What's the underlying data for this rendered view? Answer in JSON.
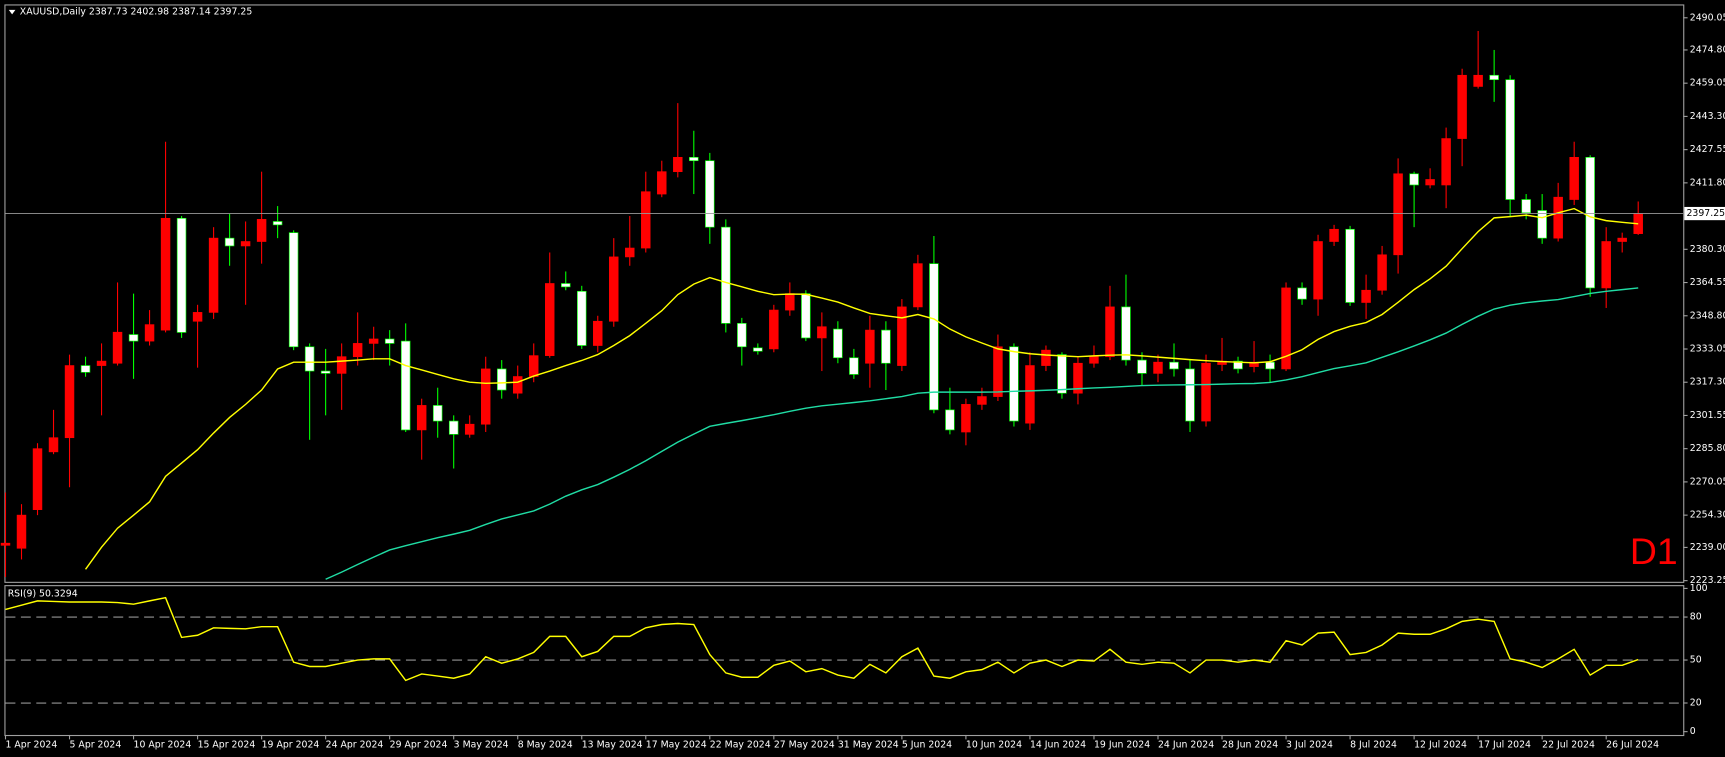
{
  "chart_data": [
    {
      "type": "candlestick",
      "title": "XAUUSD,Daily  2387.73 2402.98 2387.14 2397.25",
      "watermark": "D1",
      "categories": [
        "1 Apr 2024",
        null,
        null,
        null,
        "5 Apr 2024",
        null,
        null,
        null,
        "10 Apr 2024",
        null,
        null,
        null,
        "15 Apr 2024",
        null,
        null,
        null,
        "19 Apr 2024",
        null,
        null,
        null,
        "24 Apr 2024",
        null,
        null,
        null,
        "29 Apr 2024",
        null,
        null,
        null,
        "3 May 2024",
        null,
        null,
        null,
        "8 May 2024",
        null,
        null,
        null,
        "13 May 2024",
        null,
        null,
        null,
        "17 May 2024",
        null,
        null,
        null,
        "22 May 2024",
        null,
        null,
        null,
        "27 May 2024",
        null,
        null,
        null,
        "31 May 2024",
        null,
        null,
        null,
        "5 Jun 2024",
        null,
        null,
        null,
        "10 Jun 2024",
        null,
        null,
        null,
        "14 Jun 2024",
        null,
        null,
        null,
        "19 Jun 2024",
        null,
        null,
        null,
        "24 Jun 2024",
        null,
        null,
        null,
        "28 Jun 2024",
        null,
        null,
        null,
        "3 Jul 2024",
        null,
        null,
        null,
        "8 Jul 2024",
        null,
        null,
        null,
        "12 Jul 2024",
        null,
        null,
        null,
        "17 Jul 2024",
        null,
        null,
        null,
        "22 Jul 2024",
        null,
        null,
        null,
        "26 Jul 2024",
        null,
        null
      ],
      "open": [
        2240,
        2238.6,
        2256.9,
        2284.3,
        2291.0,
        2325.2,
        2325.2,
        2326.3,
        2339.9,
        2336.8,
        2342.0,
        2395.0,
        2346.2,
        2350.4,
        2385.6,
        2381.9,
        2384.0,
        2393.5,
        2388.2,
        2334.1,
        2322.6,
        2321.5,
        2329.4,
        2335.7,
        2337.8,
        2336.8,
        2294.7,
        2306.3,
        2298.9,
        2292.6,
        2297.4,
        2323.6,
        2312.1,
        2320.0,
        2329.9,
        2364.1,
        2360.4,
        2334.7,
        2346.2,
        2376.7,
        2380.9,
        2406.5,
        2417.1,
        2423.9,
        2422.3,
        2390.8,
        2345.2,
        2333.6,
        2333.1,
        2351.5,
        2359.3,
        2338.3,
        2342.5,
        2328.9,
        2326.3,
        2342.0,
        2325.2,
        2353.0,
        2373.5,
        2304.2,
        2293.7,
        2306.8,
        2310.5,
        2334.1,
        2297.9,
        2325.2,
        2330.4,
        2312.1,
        2326.3,
        2329.4,
        2353.0,
        2327.8,
        2321.5,
        2326.8,
        2323.6,
        2298.9,
        2325.7,
        2327.3,
        2324.7,
        2326.8,
        2323.6,
        2362.0,
        2356.7,
        2384.0,
        2389.8,
        2355.1,
        2360.9,
        2377.7,
        2416.1,
        2410.8,
        2410.8,
        2432.8,
        2457.5,
        2462.8,
        2460.7,
        2403.9,
        2398.7,
        2385.6,
        2403.9,
        2423.9,
        2362.0,
        2384.0,
        2387.73
      ],
      "high": [
        2265,
        2259.5,
        2288.4,
        2304.2,
        2330.4,
        2329.4,
        2335.7,
        2364.6,
        2359.3,
        2351.5,
        2431.3,
        2396.1,
        2354.0,
        2390.8,
        2397.1,
        2393.5,
        2417.1,
        2400.8,
        2389.3,
        2335.7,
        2333.1,
        2335.7,
        2350.4,
        2343.6,
        2342.0,
        2345.2,
        2309.5,
        2314.7,
        2301.6,
        2301.6,
        2329.4,
        2327.8,
        2325.2,
        2335.7,
        2378.8,
        2369.8,
        2363.0,
        2348.8,
        2385.6,
        2396.1,
        2417.1,
        2422.3,
        2449.6,
        2436.5,
        2426.0,
        2394.5,
        2347.8,
        2335.7,
        2354.0,
        2364.6,
        2360.9,
        2350.4,
        2346.2,
        2333.1,
        2348.8,
        2346.2,
        2356.7,
        2377.7,
        2386.6,
        2314.7,
        2309.5,
        2314.7,
        2339.9,
        2335.7,
        2331.5,
        2334.7,
        2331.5,
        2329.4,
        2334.7,
        2363.0,
        2368.3,
        2331.5,
        2330.4,
        2335.7,
        2327.8,
        2330.4,
        2338.3,
        2329.4,
        2336.8,
        2330.4,
        2364.6,
        2364.6,
        2387.2,
        2391.9,
        2391.4,
        2368.3,
        2381.9,
        2423.4,
        2417.1,
        2418.7,
        2438.0,
        2465.9,
        2483.8,
        2474.8,
        2462.8,
        2406.5,
        2406.5,
        2411.8,
        2431.3,
        2424.9,
        2390.8,
        2388.2,
        2402.98
      ],
      "low": [
        2225,
        2233.3,
        2254.3,
        2283.2,
        2267.5,
        2319.9,
        2301.6,
        2325.2,
        2318.9,
        2334.7,
        2340.9,
        2338.3,
        2324.2,
        2347.3,
        2372.5,
        2354.0,
        2373.5,
        2385.6,
        2332.5,
        2290.0,
        2301.6,
        2304.2,
        2325.2,
        2327.8,
        2325.2,
        2293.7,
        2280.6,
        2291.0,
        2276.4,
        2291.0,
        2293.7,
        2309.5,
        2309.5,
        2317.3,
        2328.9,
        2360.9,
        2333.1,
        2331.5,
        2343.6,
        2372.5,
        2378.8,
        2405.0,
        2414.4,
        2406.5,
        2382.9,
        2340.9,
        2325.2,
        2330.4,
        2331.5,
        2348.8,
        2336.8,
        2322.6,
        2326.3,
        2318.9,
        2314.7,
        2313.6,
        2322.6,
        2351.5,
        2302.6,
        2292.6,
        2287.4,
        2304.2,
        2308.4,
        2296.3,
        2294.7,
        2322.6,
        2309.5,
        2306.8,
        2324.2,
        2327.8,
        2325.2,
        2315.7,
        2317.3,
        2320.0,
        2293.7,
        2296.3,
        2322.6,
        2321.5,
        2322.0,
        2317.3,
        2322.6,
        2354.0,
        2348.8,
        2381.9,
        2353.5,
        2347.3,
        2358.8,
        2368.8,
        2390.8,
        2409.2,
        2399.8,
        2419.7,
        2456.5,
        2450.2,
        2396.1,
        2394.5,
        2382.9,
        2384.0,
        2401.3,
        2357.8,
        2352.5,
        2378.8,
        2387.14
      ],
      "close": [
        2241,
        2254.3,
        2285.8,
        2291.0,
        2325.2,
        2322.0,
        2327.3,
        2341.0,
        2336.8,
        2344.6,
        2395.0,
        2340.9,
        2350.4,
        2385.6,
        2381.9,
        2384.0,
        2394.5,
        2391.9,
        2334.1,
        2322.6,
        2321.5,
        2329.4,
        2335.7,
        2337.8,
        2335.7,
        2294.7,
        2306.3,
        2298.9,
        2292.6,
        2297.4,
        2323.6,
        2313.6,
        2320.0,
        2329.9,
        2364.1,
        2362.5,
        2334.7,
        2346.2,
        2376.7,
        2380.9,
        2407.6,
        2417.1,
        2423.9,
        2422.3,
        2390.8,
        2345.2,
        2334.1,
        2332.0,
        2351.5,
        2359.3,
        2338.3,
        2343.6,
        2328.9,
        2321.0,
        2342.0,
        2326.3,
        2353.0,
        2373.5,
        2304.2,
        2294.7,
        2306.8,
        2310.5,
        2334.1,
        2298.9,
        2325.2,
        2332.5,
        2312.1,
        2326.3,
        2329.4,
        2353.0,
        2327.8,
        2321.5,
        2326.8,
        2323.6,
        2298.9,
        2326.3,
        2327.3,
        2323.6,
        2326.8,
        2323.6,
        2362.0,
        2356.7,
        2384.0,
        2389.8,
        2355.1,
        2360.9,
        2377.7,
        2416.1,
        2410.8,
        2413.4,
        2432.8,
        2462.8,
        2462.8,
        2460.7,
        2403.9,
        2397.6,
        2385.6,
        2405.0,
        2423.9,
        2362.0,
        2384.0,
        2385.6,
        2397.25
      ],
      "up_color": "#ff0000",
      "down_color": "#ffffff",
      "up_wick_color": "#ff0000",
      "down_wick_color": "#00ff00",
      "series": [
        {
          "color": "#ffff00",
          "values": [
            null,
            null,
            null,
            null,
            null,
            2228.6,
            2239.1,
            2248.1,
            2254.3,
            2260.6,
            2272.7,
            2279.0,
            2285.3,
            2293.2,
            2300.6,
            2306.8,
            2313.6,
            2323.6,
            2326.8,
            2326.8,
            2326.8,
            2327.3,
            2327.8,
            2328.4,
            2328.4,
            2325.2,
            2323.1,
            2321.0,
            2318.9,
            2317.3,
            2316.8,
            2317.0,
            2317.3,
            2320.2,
            2322.6,
            2325.2,
            2327.6,
            2330.4,
            2334.7,
            2339.4,
            2345.2,
            2351.2,
            2358.8,
            2363.8,
            2366.9,
            2364.6,
            2362.5,
            2360.4,
            2358.8,
            2359.1,
            2359.0,
            2357.2,
            2355.3,
            2352.5,
            2349.9,
            2348.8,
            2347.8,
            2349.4,
            2347.3,
            2342.5,
            2338.8,
            2335.9,
            2333.1,
            2331.8,
            2330.8,
            2330.2,
            2329.8,
            2329.4,
            2329.8,
            2330.1,
            2330.3,
            2329.8,
            2329.2,
            2328.6,
            2328.0,
            2327.5,
            2327.1,
            2326.8,
            2326.5,
            2327.0,
            2329.6,
            2332.7,
            2337.6,
            2341.3,
            2343.8,
            2345.6,
            2349.4,
            2355.2,
            2361.2,
            2366.3,
            2372.3,
            2380.6,
            2388.7,
            2395.2,
            2395.8,
            2396.5,
            2395.3,
            2397.6,
            2399.6,
            2395.7,
            2393.9,
            2393.1,
            2392.4
          ]
        },
        {
          "color": "#20dca4",
          "values": [
            null,
            null,
            null,
            null,
            null,
            null,
            null,
            null,
            null,
            null,
            null,
            null,
            null,
            null,
            null,
            null,
            null,
            null,
            null,
            null,
            2223.9,
            2227.3,
            2230.9,
            2234.4,
            2237.8,
            2239.8,
            2241.7,
            2243.6,
            2245.3,
            2247.1,
            2249.9,
            2252.5,
            2254.4,
            2256.3,
            2259.5,
            2263.3,
            2266.3,
            2268.8,
            2272.3,
            2276.0,
            2280.1,
            2284.5,
            2288.9,
            2292.7,
            2296.4,
            2297.8,
            2299.1,
            2300.5,
            2301.9,
            2303.5,
            2305.0,
            2306.1,
            2306.9,
            2307.7,
            2308.5,
            2309.5,
            2310.5,
            2312.1,
            2312.6,
            2312.6,
            2312.6,
            2312.6,
            2312.7,
            2313.0,
            2313.2,
            2313.5,
            2313.8,
            2314.2,
            2314.6,
            2314.9,
            2315.3,
            2315.7,
            2315.9,
            2316.0,
            2316.1,
            2316.2,
            2316.4,
            2316.6,
            2316.7,
            2317.2,
            2318.4,
            2319.9,
            2321.9,
            2323.8,
            2325.1,
            2326.5,
            2329.1,
            2331.7,
            2334.5,
            2337.4,
            2340.6,
            2344.7,
            2348.6,
            2352.0,
            2353.8,
            2355.0,
            2355.8,
            2356.5,
            2357.9,
            2359.4,
            2360.4,
            2361.2,
            2362.0
          ]
        }
      ],
      "current_price": 2397.25,
      "ylim": [
        2222.7,
        2494.3
      ],
      "yticks": [
        2490.05,
        {
          "value": 2474.8,
          "label": "2474.80"
        },
        2459.05,
        {
          "value": 2443.3,
          "label": "2443.30"
        },
        2427.55,
        {
          "value": 2411.8,
          "label": "2411.80"
        },
        {
          "value": 2380.3,
          "label": "2380.30"
        },
        2364.55,
        {
          "value": 2348.8,
          "label": "2348.80"
        },
        2333.05,
        {
          "value": 2317.3,
          "label": "2317.30"
        },
        2301.55,
        {
          "value": 2285.8,
          "label": "2285.80"
        },
        2270.05,
        {
          "value": 2254.3,
          "label": "2254.30"
        },
        {
          "value": 2239,
          "label": "2239.00"
        },
        2223.25
      ]
    },
    {
      "type": "line",
      "title": "RSI(9) 50.3294",
      "series": [
        {
          "color": "#ffff00",
          "values": [
            85.3,
            88.3,
            91.3,
            90.9,
            90.5,
            90.5,
            90.5,
            90.1,
            89.0,
            91.3,
            93.5,
            65.8,
            67.3,
            72.5,
            72.1,
            71.8,
            73.3,
            73.3,
            48.5,
            45.5,
            45.5,
            47.8,
            50.0,
            50.8,
            50.8,
            35.8,
            40.3,
            38.8,
            37.3,
            40.3,
            52.3,
            47.8,
            50.8,
            55.3,
            66.5,
            66.5,
            52.3,
            56.0,
            66.5,
            66.5,
            72.5,
            74.8,
            75.5,
            74.8,
            53.8,
            41.0,
            38.0,
            38.0,
            46.3,
            49.3,
            41.8,
            44.0,
            39.5,
            37.3,
            47.0,
            41.0,
            52.3,
            58.3,
            38.8,
            37.3,
            41.8,
            43.3,
            48.5,
            41.0,
            47.8,
            50.0,
            45.5,
            50.0,
            49.3,
            57.5,
            48.5,
            47.0,
            48.5,
            47.8,
            41.0,
            50.0,
            50.0,
            48.5,
            50.0,
            48.5,
            63.5,
            60.5,
            68.8,
            69.5,
            53.8,
            55.3,
            60.5,
            68.8,
            68.0,
            68.0,
            71.8,
            77.0,
            78.5,
            77.0,
            50.8,
            48.5,
            44.8,
            50.8,
            57.5,
            39.5,
            46.3,
            46.3,
            50.3294
          ]
        }
      ],
      "ylim": [
        0,
        100
      ],
      "yticks": [
        100,
        80,
        50,
        20,
        0
      ],
      "levels": [
        80,
        50,
        20
      ]
    }
  ]
}
